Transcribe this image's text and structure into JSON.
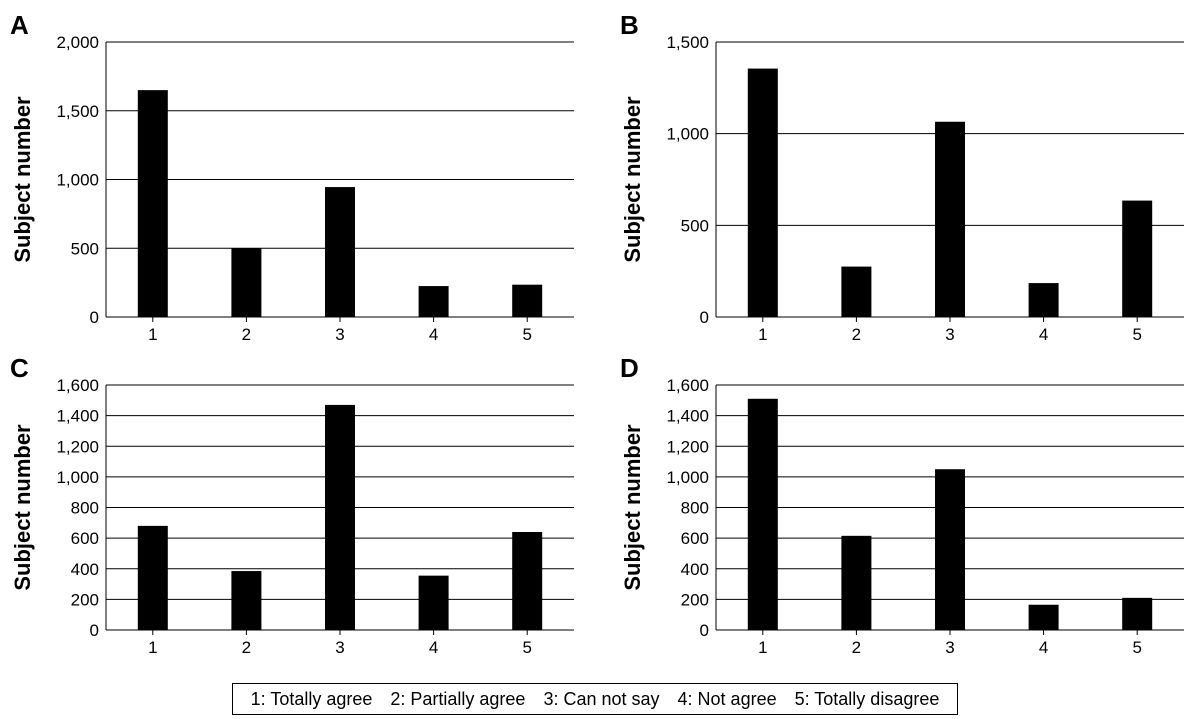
{
  "chart_data": [
    {
      "type": "bar",
      "panel_label": "A",
      "ylabel": "Subject number",
      "categories": [
        "1",
        "2",
        "3",
        "4",
        "5"
      ],
      "values": [
        1650,
        500,
        945,
        225,
        235
      ],
      "ylim": [
        0,
        2000
      ],
      "yticks": [
        "0",
        "500",
        "1,000",
        "1,500",
        "2,000"
      ],
      "grid": true,
      "bar_color": "#000000"
    },
    {
      "type": "bar",
      "panel_label": "B",
      "ylabel": "Subject number",
      "categories": [
        "1",
        "2",
        "3",
        "4",
        "5"
      ],
      "values": [
        1355,
        275,
        1065,
        185,
        635
      ],
      "ylim": [
        0,
        1500
      ],
      "yticks": [
        "0",
        "500",
        "1,000",
        "1,500"
      ],
      "grid": true,
      "bar_color": "#000000"
    },
    {
      "type": "bar",
      "panel_label": "C",
      "ylabel": "Subject number",
      "categories": [
        "1",
        "2",
        "3",
        "4",
        "5"
      ],
      "values": [
        680,
        385,
        1470,
        355,
        640
      ],
      "ylim": [
        0,
        1600
      ],
      "yticks": [
        "0",
        "200",
        "400",
        "600",
        "800",
        "1,000",
        "1,200",
        "1,400",
        "1,600"
      ],
      "grid": true,
      "bar_color": "#000000"
    },
    {
      "type": "bar",
      "panel_label": "D",
      "ylabel": "Subject number",
      "categories": [
        "1",
        "2",
        "3",
        "4",
        "5"
      ],
      "values": [
        1510,
        615,
        1050,
        165,
        210
      ],
      "ylim": [
        0,
        1600
      ],
      "yticks": [
        "0",
        "200",
        "400",
        "600",
        "800",
        "1,000",
        "1,200",
        "1,400",
        "1,600"
      ],
      "grid": true,
      "bar_color": "#000000"
    }
  ],
  "legend": {
    "items": [
      "1: Totally agree",
      "2: Partially agree",
      "3: Can not say",
      "4: Not agree",
      "5: Totally disagree"
    ]
  }
}
